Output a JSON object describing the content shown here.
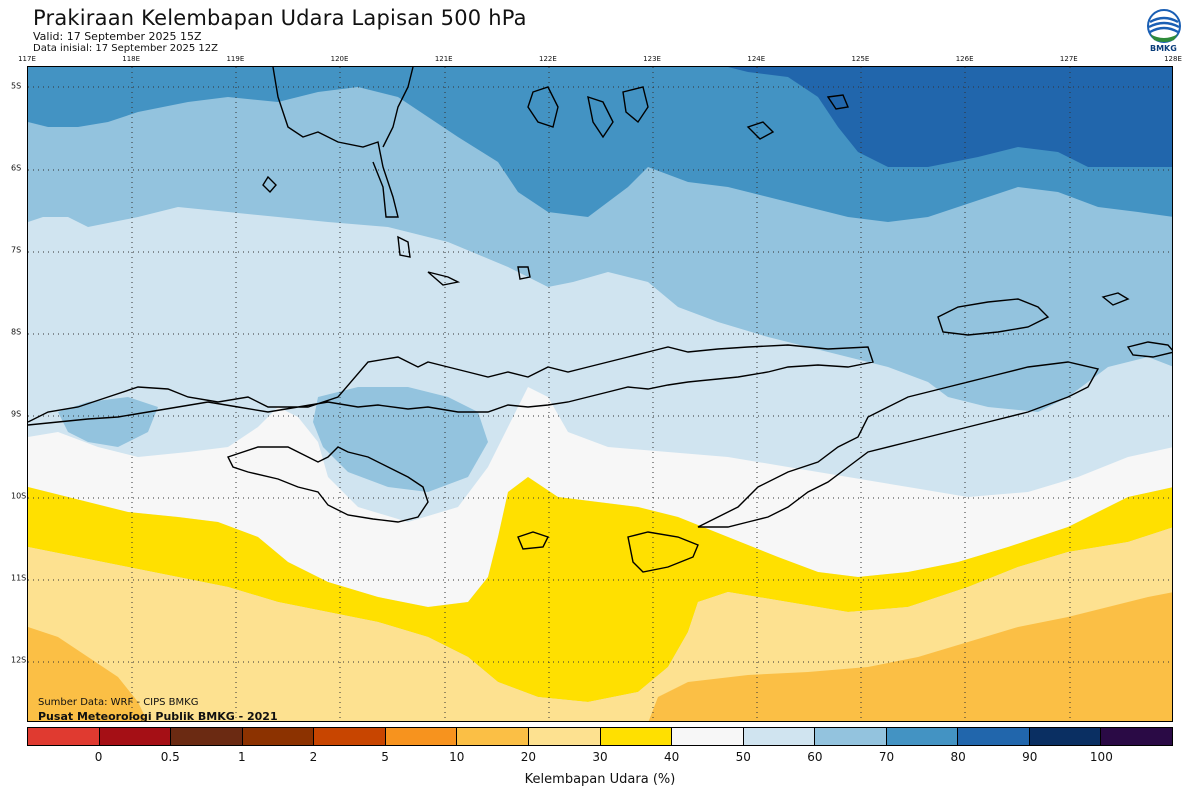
{
  "header": {
    "title": "Prakiraan Kelembapan Udara Lapisan 500 hPa",
    "valid": "Valid: 17 September 2025 15Z",
    "initial": "Data inisial: 17 September 2025 12Z"
  },
  "logo": {
    "text": "BMKG",
    "icon": "bmkg-logo-icon"
  },
  "axes": {
    "longitudes": [
      "117E",
      "118E",
      "119E",
      "120E",
      "121E",
      "122E",
      "123E",
      "124E",
      "125E",
      "126E",
      "127E",
      "128E"
    ],
    "latitudes": [
      "5S",
      "6S",
      "7S",
      "8S",
      "9S",
      "10S",
      "11S",
      "12S"
    ]
  },
  "map": {
    "region": "Nusa Tenggara",
    "field": "relative humidity 500 hPa",
    "grid": "dotted"
  },
  "credits": {
    "source": "Sumber Data: WRF - CIPS BMKG",
    "publisher": "Pusat Meteorologi Publik BMKG - 2021"
  },
  "colorbar": {
    "colors": [
      "#e03a30",
      "#a50f15",
      "#6b2a12",
      "#8c3200",
      "#c84500",
      "#f7931e",
      "#fbbf45",
      "#fde190",
      "#ffe000",
      "#f7f7f7",
      "#d0e4f0",
      "#93c3de",
      "#4393c3",
      "#2166ac",
      "#0a2f62",
      "#2a0a45"
    ],
    "ticks": [
      "0",
      "0.5",
      "1",
      "2",
      "5",
      "10",
      "20",
      "30",
      "40",
      "50",
      "60",
      "70",
      "80",
      "90",
      "100"
    ],
    "label": "Kelembapan Udara (%)"
  }
}
